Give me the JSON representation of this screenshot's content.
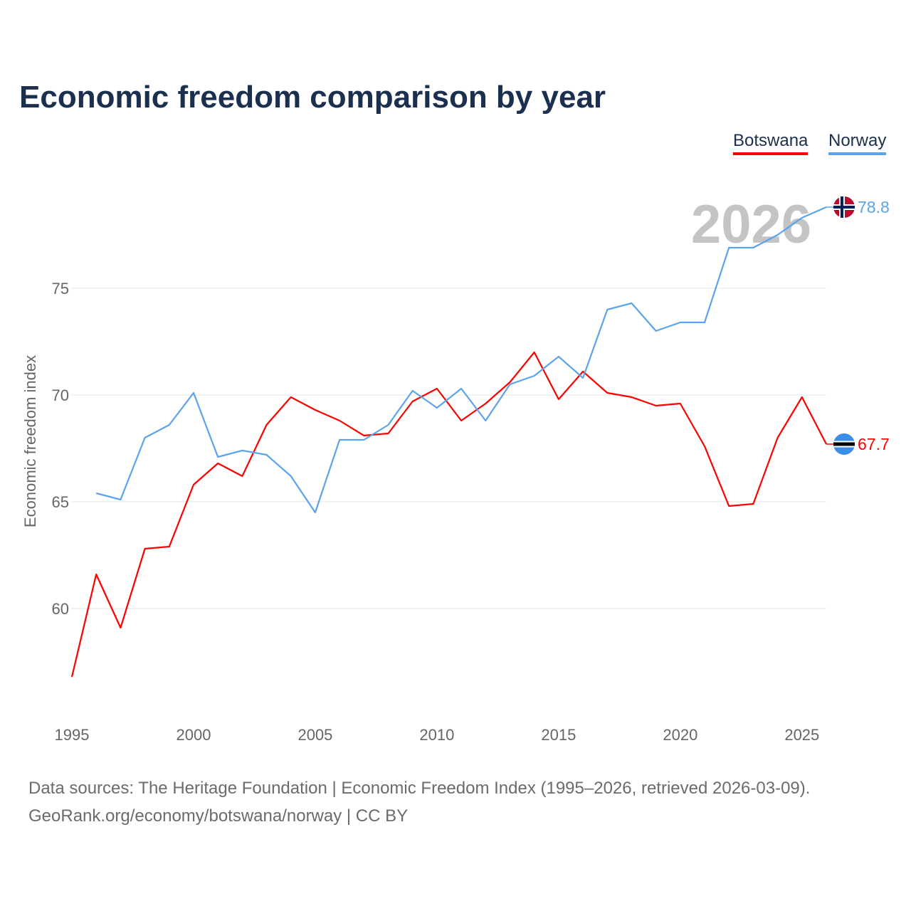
{
  "title": "Economic freedom comparison by year",
  "source_line1": "Data sources: The Heritage Foundation | Economic Freedom Index (1995–2026, retrieved 2026-03-09).",
  "source_line2": "GeoRank.org/economy/botswana/norway | CC BY",
  "chart_data": {
    "type": "line",
    "title": "Economic freedom comparison by year",
    "xlabel": "",
    "ylabel": "Economic freedom index",
    "xlim": [
      1995,
      2026
    ],
    "ylim": [
      55.5,
      80.5
    ],
    "xticks": [
      1995,
      2000,
      2005,
      2010,
      2015,
      2020,
      2025
    ],
    "yticks": [
      60,
      65,
      70,
      75
    ],
    "grid": true,
    "legend": "top-right",
    "year_label": "2026",
    "x": [
      1995,
      1996,
      1997,
      1998,
      1999,
      2000,
      2001,
      2002,
      2003,
      2004,
      2005,
      2006,
      2007,
      2008,
      2009,
      2010,
      2011,
      2012,
      2013,
      2014,
      2015,
      2016,
      2017,
      2018,
      2019,
      2020,
      2021,
      2022,
      2023,
      2024,
      2025,
      2026
    ],
    "series": [
      {
        "name": "Botswana",
        "color": "#ff0000",
        "end_label": "67.7",
        "values": [
          56.8,
          61.6,
          59.1,
          62.8,
          62.9,
          65.8,
          66.8,
          66.2,
          68.6,
          69.9,
          69.3,
          68.8,
          68.1,
          68.2,
          69.7,
          70.3,
          68.8,
          69.6,
          70.6,
          72.0,
          69.8,
          71.1,
          70.1,
          69.9,
          69.5,
          69.6,
          67.6,
          64.8,
          64.9,
          68.0,
          69.9,
          67.7
        ]
      },
      {
        "name": "Norway",
        "color": "#5ba4ec",
        "end_label": "78.8",
        "values": [
          null,
          65.4,
          65.1,
          68.0,
          68.6,
          70.1,
          67.1,
          67.4,
          67.2,
          66.2,
          64.5,
          67.9,
          67.9,
          68.6,
          70.2,
          69.4,
          70.3,
          68.8,
          70.5,
          70.9,
          71.8,
          70.8,
          74.0,
          74.3,
          73.0,
          73.4,
          73.4,
          76.9,
          76.9,
          77.5,
          78.3,
          78.8
        ]
      }
    ]
  }
}
